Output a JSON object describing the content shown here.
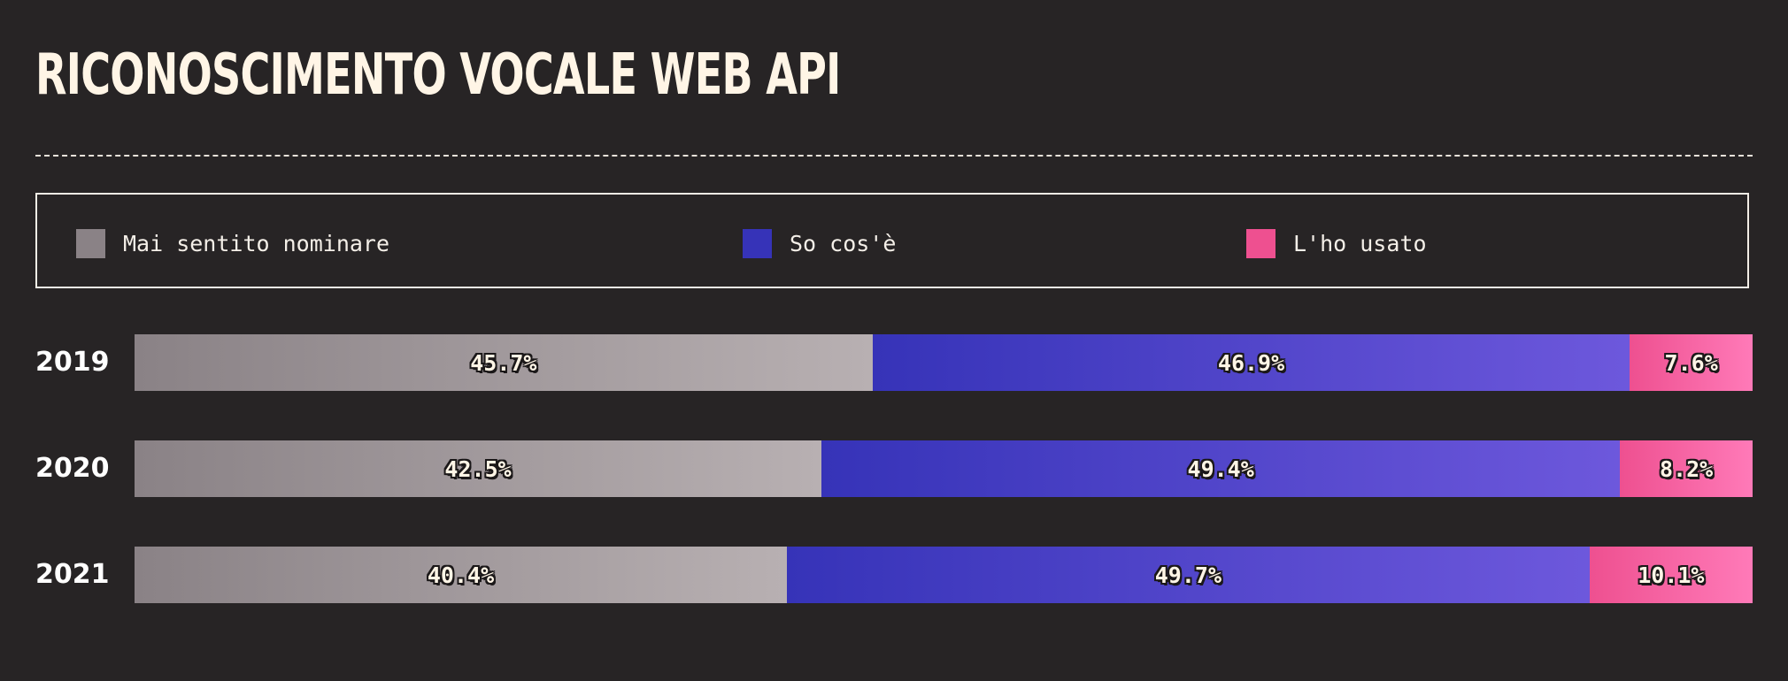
{
  "chart_data": {
    "type": "bar",
    "orientation": "horizontal",
    "stacked": true,
    "normalized_percent": true,
    "title": "RICONOSCIMENTO VOCALE WEB API",
    "categories": [
      "2019",
      "2020",
      "2021"
    ],
    "series": [
      {
        "name": "Mai sentito nominare",
        "values": [
          45.7,
          42.5,
          40.4
        ],
        "value_labels": [
          "45.7%",
          "42.5%",
          "40.4%"
        ],
        "color": "#8a8286",
        "color_end": "#b8b0b2"
      },
      {
        "name": "So cos'è",
        "values": [
          46.9,
          49.4,
          49.7
        ],
        "value_labels": [
          "46.9%",
          "49.4%",
          "49.7%"
        ],
        "color": "#3633b8",
        "color_end": "#6d58dc"
      },
      {
        "name": "L'ho usato",
        "values": [
          7.6,
          8.2,
          10.1
        ],
        "value_labels": [
          "7.6%",
          "8.2%",
          "10.1%"
        ],
        "color": "#ee5090",
        "color_end": "#ff7ab8"
      }
    ],
    "legend": "top",
    "grid": false
  }
}
